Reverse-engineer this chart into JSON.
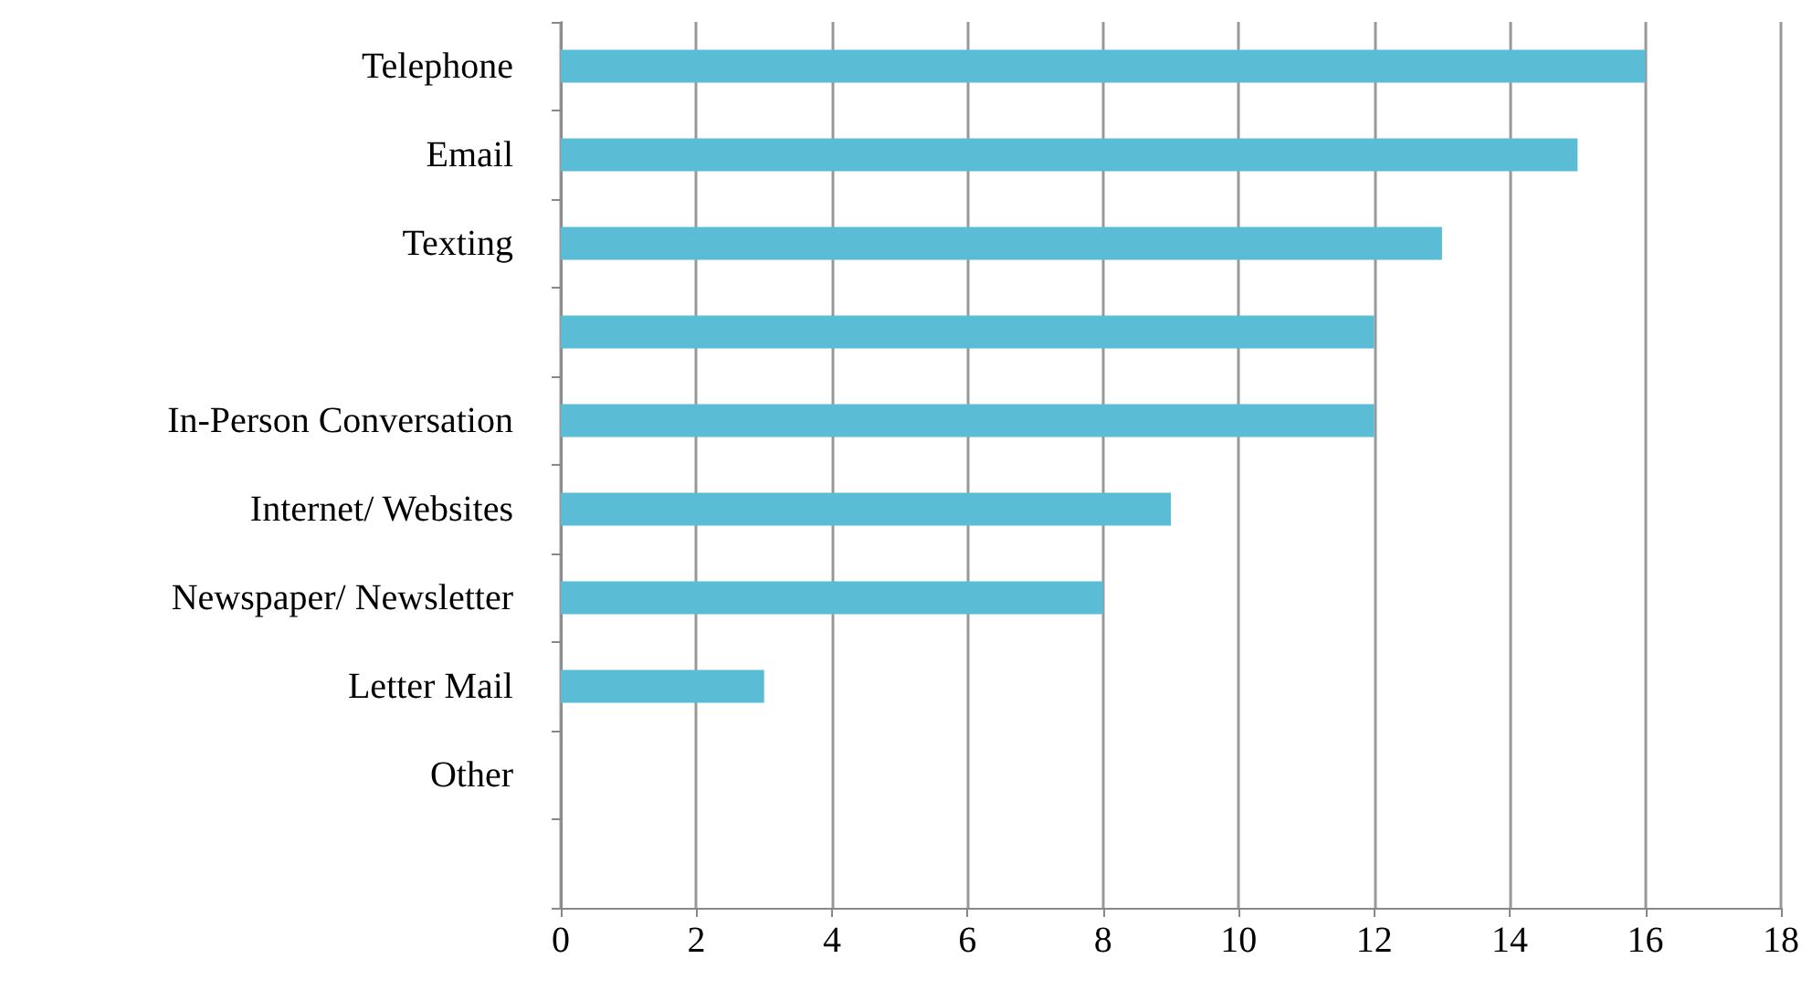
{
  "chart_data": {
    "type": "bar",
    "orientation": "horizontal",
    "categories": [
      "Telephone",
      "Email",
      "Texting",
      null,
      "In-Person Conversation",
      "Internet/ Websites",
      "Newspaper/ Newsletter",
      "Letter Mail",
      "Other",
      null
    ],
    "values": [
      16,
      15,
      13,
      12,
      12,
      9,
      8,
      3,
      0,
      0
    ],
    "color": "#5bbcd6",
    "xlim": [
      0,
      18
    ],
    "xticks": [
      0,
      2,
      4,
      6,
      8,
      10,
      12,
      14,
      16,
      18
    ],
    "grid": "x"
  }
}
